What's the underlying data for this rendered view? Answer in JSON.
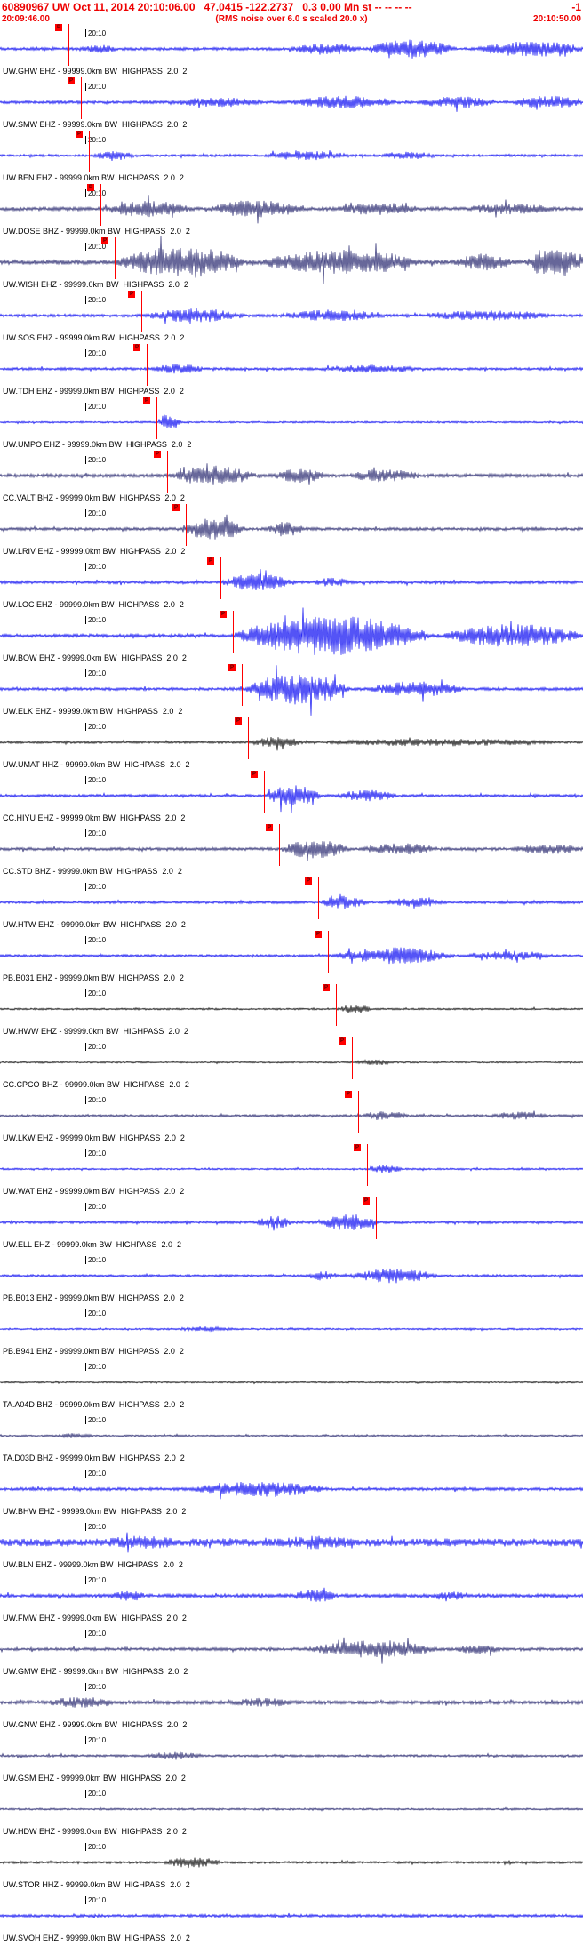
{
  "header": {
    "line1_left": "60890967 UW Oct 11, 2014 20:10:06.00   47.0415 -122.2737   0.3 0.00 Mn st -- -- -- --",
    "line1_right": "-1",
    "start_time": "20:09:46.00",
    "center_note": "(RMS noise over 6.0 s scaled 20.0 x)",
    "end_time": "20:10:50.00",
    "accent_color": "#ff0000"
  },
  "tick_label": "20:10",
  "label_meta": "99999.0km BW  HIGHPASS  2.0  2",
  "pick_label": "P",
  "traces": [
    {
      "station": "UW.GHW EHZ",
      "color": "#0a0af2",
      "noise": 1.8,
      "bursts": [
        {
          "s": 0.14,
          "e": 0.2,
          "a": 3
        },
        {
          "s": 0.5,
          "e": 0.62,
          "a": 5
        },
        {
          "s": 0.63,
          "e": 0.78,
          "a": 9
        },
        {
          "s": 0.82,
          "e": 1.0,
          "a": 8
        }
      ],
      "pick": 0.118
    },
    {
      "station": "UW.SMW EHZ",
      "color": "#0a0af2",
      "noise": 1.8,
      "bursts": [
        {
          "s": 0.3,
          "e": 0.45,
          "a": 4
        },
        {
          "s": 0.5,
          "e": 0.68,
          "a": 6
        },
        {
          "s": 0.72,
          "e": 0.85,
          "a": 5
        },
        {
          "s": 0.88,
          "e": 1.0,
          "a": 6
        }
      ],
      "pick": 0.138
    },
    {
      "station": "UW.BEN EHZ",
      "color": "#0a0af2",
      "noise": 1.5,
      "bursts": [
        {
          "s": 0.16,
          "e": 0.23,
          "a": 5
        },
        {
          "s": 0.45,
          "e": 0.6,
          "a": 4
        },
        {
          "s": 0.65,
          "e": 0.75,
          "a": 3
        }
      ],
      "pick": 0.152
    },
    {
      "station": "UW.DOSE BHZ",
      "color": "#26266e",
      "noise": 2.2,
      "bursts": [
        {
          "s": 0.18,
          "e": 0.33,
          "a": 7
        },
        {
          "s": 0.36,
          "e": 0.52,
          "a": 8
        },
        {
          "s": 0.58,
          "e": 0.72,
          "a": 5
        },
        {
          "s": 0.8,
          "e": 0.95,
          "a": 4
        }
      ],
      "pick": 0.172
    },
    {
      "station": "UW.WISH EHZ",
      "color": "#26266e",
      "noise": 2.6,
      "bursts": [
        {
          "s": 0.2,
          "e": 0.42,
          "a": 15
        },
        {
          "s": 0.45,
          "e": 0.72,
          "a": 12
        },
        {
          "s": 0.78,
          "e": 0.88,
          "a": 7
        },
        {
          "s": 0.9,
          "e": 1.0,
          "a": 15
        }
      ],
      "pick": 0.196
    },
    {
      "station": "UW.SOS EHZ",
      "color": "#0a0af2",
      "noise": 1.8,
      "bursts": [
        {
          "s": 0.25,
          "e": 0.42,
          "a": 6
        },
        {
          "s": 0.48,
          "e": 0.66,
          "a": 5
        },
        {
          "s": 0.72,
          "e": 0.95,
          "a": 4
        }
      ],
      "pick": 0.243
    },
    {
      "station": "UW.TDH EHZ",
      "color": "#0a0af2",
      "noise": 1.6,
      "bursts": [
        {
          "s": 0.26,
          "e": 0.35,
          "a": 4
        },
        {
          "s": 0.55,
          "e": 0.72,
          "a": 3
        }
      ],
      "pick": 0.252
    },
    {
      "station": "UW.UMPO EHZ",
      "color": "#0a0af2",
      "noise": 1.1,
      "bursts": [
        {
          "s": 0.27,
          "e": 0.31,
          "a": 9
        }
      ],
      "pick": 0.268
    },
    {
      "station": "CC.VALT BHZ",
      "color": "#26266e",
      "noise": 2.2,
      "bursts": [
        {
          "s": 0.29,
          "e": 0.44,
          "a": 9
        },
        {
          "s": 0.47,
          "e": 0.56,
          "a": 6
        },
        {
          "s": 0.6,
          "e": 0.72,
          "a": 5
        }
      ],
      "pick": 0.287
    },
    {
      "station": "UW.LRIV EHZ",
      "color": "#26266e",
      "noise": 1.8,
      "bursts": [
        {
          "s": 0.31,
          "e": 0.42,
          "a": 11
        },
        {
          "s": 0.46,
          "e": 0.52,
          "a": 7
        }
      ],
      "pick": 0.318
    },
    {
      "station": "UW.LOC EHZ",
      "color": "#0a0af2",
      "noise": 1.8,
      "bursts": [
        {
          "s": 0.38,
          "e": 0.5,
          "a": 8
        },
        {
          "s": 0.54,
          "e": 0.6,
          "a": 4
        }
      ],
      "pick": 0.378
    },
    {
      "station": "UW.BOW EHZ",
      "color": "#0a0af2",
      "noise": 2.0,
      "bursts": [
        {
          "s": 0.4,
          "e": 0.74,
          "a": 21
        },
        {
          "s": 0.76,
          "e": 1.0,
          "a": 11
        }
      ],
      "pick": 0.4
    },
    {
      "station": "UW.ELK EHZ",
      "color": "#0a0af2",
      "noise": 1.8,
      "bursts": [
        {
          "s": 0.42,
          "e": 0.6,
          "a": 16
        },
        {
          "s": 0.63,
          "e": 0.8,
          "a": 7
        }
      ],
      "pick": 0.414
    },
    {
      "station": "UW.UMAT HHZ",
      "color": "#0a0a0a",
      "noise": 1.4,
      "bursts": [
        {
          "s": 0.43,
          "e": 0.52,
          "a": 5
        },
        {
          "s": 0.56,
          "e": 0.95,
          "a": 3
        }
      ],
      "pick": 0.425
    },
    {
      "station": "CC.HIYU EHZ",
      "color": "#0a0af2",
      "noise": 1.6,
      "bursts": [
        {
          "s": 0.455,
          "e": 0.55,
          "a": 11
        },
        {
          "s": 0.58,
          "e": 0.68,
          "a": 5
        }
      ],
      "pick": 0.452
    },
    {
      "station": "CC.STD BHZ",
      "color": "#26266e",
      "noise": 1.8,
      "bursts": [
        {
          "s": 0.48,
          "e": 0.6,
          "a": 9
        },
        {
          "s": 0.62,
          "e": 0.75,
          "a": 5
        },
        {
          "s": 0.88,
          "e": 1.0,
          "a": 4
        }
      ],
      "pick": 0.478
    },
    {
      "station": "UW.HTW EHZ",
      "color": "#0a0af2",
      "noise": 1.6,
      "bursts": [
        {
          "s": 0.55,
          "e": 0.63,
          "a": 6
        },
        {
          "s": 0.66,
          "e": 0.76,
          "a": 4
        }
      ],
      "pick": 0.545
    },
    {
      "station": "PB.B031 EHZ",
      "color": "#0a0af2",
      "noise": 1.4,
      "bursts": [
        {
          "s": 0.57,
          "e": 0.78,
          "a": 8
        },
        {
          "s": 0.8,
          "e": 0.95,
          "a": 4
        }
      ],
      "pick": 0.563
    },
    {
      "station": "UW.HWW EHZ",
      "color": "#0a0a0a",
      "noise": 1.1,
      "bursts": [
        {
          "s": 0.58,
          "e": 0.64,
          "a": 4
        }
      ],
      "pick": 0.576
    },
    {
      "station": "CC.CPCO BHZ",
      "color": "#0a0a0a",
      "noise": 1.0,
      "bursts": [
        {
          "s": 0.61,
          "e": 0.67,
          "a": 3
        }
      ],
      "pick": 0.604
    },
    {
      "station": "UW.LKW EHZ",
      "color": "#26266e",
      "noise": 1.4,
      "bursts": [
        {
          "s": 0.62,
          "e": 0.7,
          "a": 4
        },
        {
          "s": 0.84,
          "e": 0.94,
          "a": 3
        }
      ],
      "pick": 0.614
    },
    {
      "station": "UW.WAT EHZ",
      "color": "#0a0af2",
      "noise": 1.1,
      "bursts": [
        {
          "s": 0.63,
          "e": 0.69,
          "a": 4
        }
      ],
      "pick": 0.63
    },
    {
      "station": "UW.ELL EHZ",
      "color": "#0a0af2",
      "noise": 1.6,
      "bursts": [
        {
          "s": 0.44,
          "e": 0.5,
          "a": 6
        },
        {
          "s": 0.55,
          "e": 0.65,
          "a": 8
        }
      ],
      "pick": 0.645
    },
    {
      "station": "PB.B013 EHZ",
      "color": "#0a0af2",
      "noise": 1.4,
      "bursts": [
        {
          "s": 0.52,
          "e": 0.58,
          "a": 4
        },
        {
          "s": 0.6,
          "e": 0.75,
          "a": 7
        }
      ],
      "pick": null
    },
    {
      "station": "PB.B941 EHZ",
      "color": "#0a0af2",
      "noise": 1.1,
      "bursts": [
        {
          "s": 0.3,
          "e": 0.4,
          "a": 2
        }
      ],
      "pick": null
    },
    {
      "station": "TA.A04D BHZ",
      "color": "#0a0a0a",
      "noise": 1.0,
      "bursts": [],
      "pick": null
    },
    {
      "station": "TA.D03D BHZ",
      "color": "#26266e",
      "noise": 1.1,
      "bursts": [
        {
          "s": 0.1,
          "e": 0.16,
          "a": 2
        }
      ],
      "pick": null
    },
    {
      "station": "UW.BHW EHZ",
      "color": "#0a0af2",
      "noise": 1.8,
      "bursts": [
        {
          "s": 0.33,
          "e": 0.56,
          "a": 7
        }
      ],
      "pick": null
    },
    {
      "station": "UW.BLN EHZ",
      "color": "#0a0af2",
      "noise": 4.5,
      "bursts": [
        {
          "s": 0.18,
          "e": 0.3,
          "a": 3
        },
        {
          "s": 0.48,
          "e": 0.6,
          "a": 3
        }
      ],
      "pick": null
    },
    {
      "station": "UW.FMW EHZ",
      "color": "#0a0af2",
      "noise": 2.2,
      "bursts": [
        {
          "s": 0.19,
          "e": 0.25,
          "a": 4
        },
        {
          "s": 0.5,
          "e": 0.58,
          "a": 5
        },
        {
          "s": 0.74,
          "e": 0.8,
          "a": 3
        }
      ],
      "pick": null
    },
    {
      "station": "UW.GMW EHZ",
      "color": "#26266e",
      "noise": 1.8,
      "bursts": [
        {
          "s": 0.53,
          "e": 0.75,
          "a": 8
        },
        {
          "s": 0.78,
          "e": 0.86,
          "a": 4
        }
      ],
      "pick": null
    },
    {
      "station": "UW.GNW EHZ",
      "color": "#26266e",
      "noise": 2.2,
      "bursts": [
        {
          "s": 0.08,
          "e": 0.2,
          "a": 4
        },
        {
          "s": 0.4,
          "e": 0.5,
          "a": 3
        }
      ],
      "pick": null
    },
    {
      "station": "UW.GSM EHZ",
      "color": "#26266e",
      "noise": 1.4,
      "bursts": [
        {
          "s": 0.25,
          "e": 0.35,
          "a": 3
        }
      ],
      "pick": null
    },
    {
      "station": "UW.HDW EHZ",
      "color": "#26266e",
      "noise": 1.2,
      "bursts": [],
      "pick": null
    },
    {
      "station": "UW.STOR HHZ",
      "color": "#0a0a0a",
      "noise": 1.4,
      "bursts": [
        {
          "s": 0.28,
          "e": 0.38,
          "a": 5
        }
      ],
      "pick": null
    },
    {
      "station": "UW.SVOH EHZ",
      "color": "#0a0af2",
      "noise": 1.8,
      "bursts": [],
      "pick": null
    }
  ]
}
